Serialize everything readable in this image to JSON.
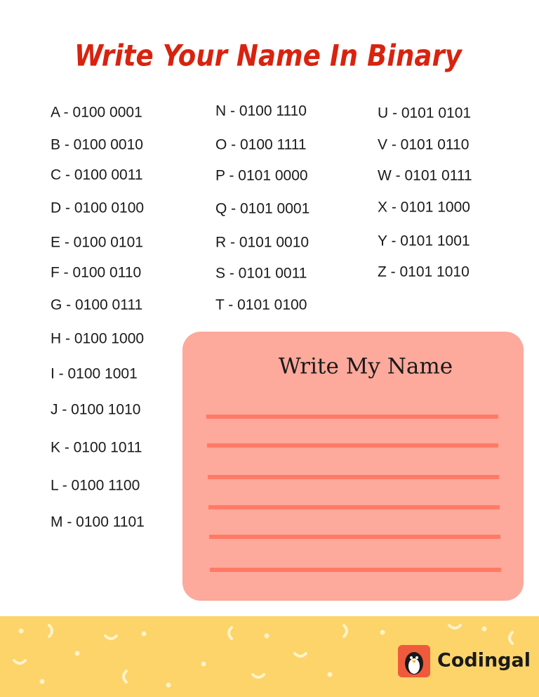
{
  "header": {
    "title": "Write Your Name In Binary"
  },
  "columns": [
    [
      "A - 0100 0001",
      "B - 0100 0010",
      "C - 0100 0011",
      "D - 0100 0100",
      "E - 0100 0101",
      "F - 0100 0110",
      "G - 0100 0111",
      "H - 0100 1000",
      "I - 0100 1001",
      "J - 0100 1010",
      "K - 0100 1011",
      "L - 0100 1100",
      "M - 0100 1101"
    ],
    [
      "N - 0100 1110",
      "O - 0100 1111",
      "P - 0101 0000",
      "Q - 0101 0001",
      "R - 0101 0010",
      "S - 0101 0011",
      "T - 0101 0100"
    ],
    [
      "U - 0101 0101",
      "V - 0101 0110",
      "W - 0101 0111",
      "X - 0101 1000",
      "Y - 0101 1001",
      "Z - 0101 1010"
    ]
  ],
  "name_box": {
    "title": "Write My Name"
  },
  "footer": {
    "brand": "Codingal"
  }
}
